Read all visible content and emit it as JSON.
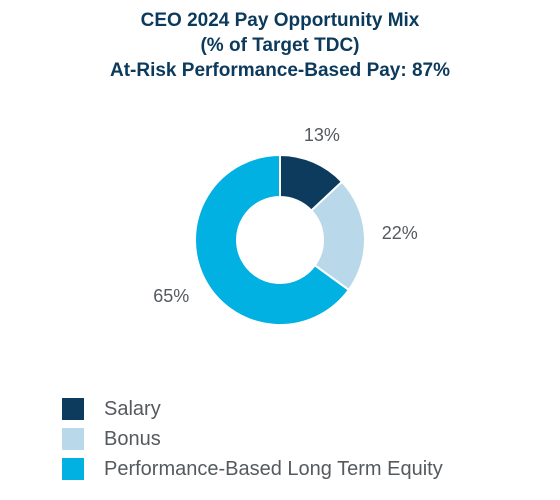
{
  "chart_data": {
    "type": "pie",
    "title_lines": [
      "CEO 2024 Pay Opportunity Mix",
      "(% of Target TDC)",
      "At-Risk Performance-Based Pay: 87%"
    ],
    "categories": [
      "Salary",
      "Bonus",
      "Performance-Based Long Term Equity"
    ],
    "values": [
      13,
      22,
      65
    ],
    "data_labels": [
      "13%",
      "22%",
      "65%"
    ],
    "colors": [
      "#0d3b5e",
      "#b9d9ea",
      "#00b1e1"
    ],
    "donut": true,
    "legend_position": "bottom-left"
  }
}
